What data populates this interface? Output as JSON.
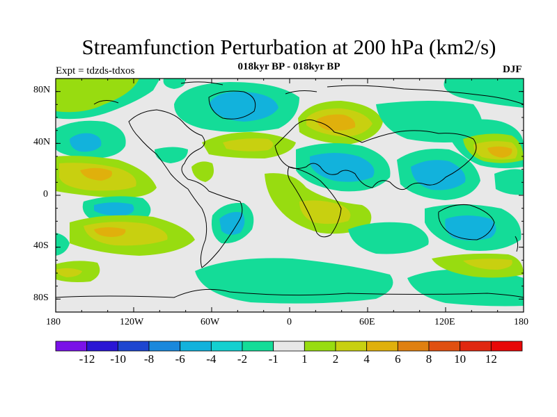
{
  "title": "Streamfunction Perturbation at 200 hPa (km2/s)",
  "subtitle": "018kyr BP - 018kyr BP",
  "left_label": "Expt = tdzds-tdxos",
  "right_label": "DJF",
  "lat_labels": [
    "80N",
    "40N",
    "0",
    "40S",
    "80S"
  ],
  "lon_labels": [
    "180",
    "120W",
    "60W",
    "0",
    "60E",
    "120E",
    "180"
  ],
  "colorbar": {
    "labels": [
      "-12",
      "-10",
      "-8",
      "-6",
      "-4",
      "-2",
      "-1",
      "1",
      "2",
      "4",
      "6",
      "8",
      "10",
      "12"
    ],
    "colors": [
      "#7a12e8",
      "#2a16d4",
      "#1e46d0",
      "#1a88dc",
      "#12b2dc",
      "#14d0d0",
      "#14dc98",
      "#e8e8e8",
      "#98dc10",
      "#c8d010",
      "#e0b00c",
      "#e08010",
      "#e05010",
      "#e02810",
      "#e80808"
    ]
  },
  "palette": {
    "neutral": "#e8e8e8",
    "green_neg": "#14dc98",
    "cyan": "#14d0d0",
    "blue": "#12b2dc",
    "lime": "#98dc10",
    "olive": "#c8d010",
    "orange": "#e0b00c"
  }
}
